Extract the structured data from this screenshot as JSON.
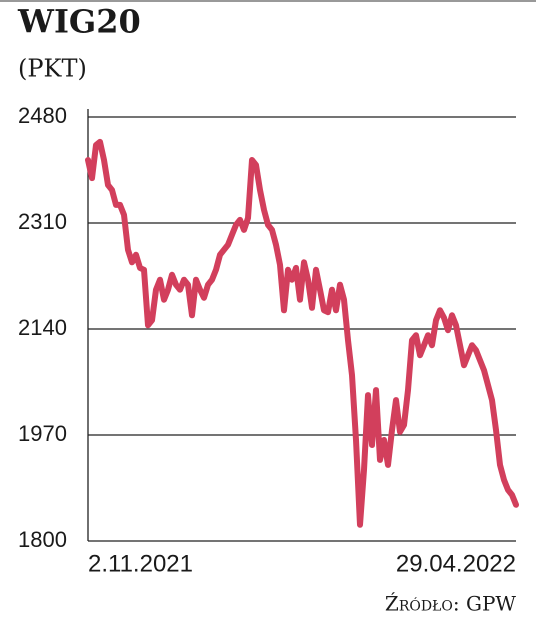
{
  "chart_data": {
    "type": "line",
    "title": "WIG20",
    "subtitle": "(PKT)",
    "source": "Źródło: GPW",
    "categories": [
      "2.11.2021",
      null,
      null,
      null,
      null,
      null,
      null,
      null,
      null,
      null,
      null,
      null,
      null,
      null,
      null,
      null,
      null,
      null,
      null,
      null,
      null,
      null,
      null,
      null,
      null,
      null,
      null,
      null,
      null,
      null,
      null,
      null,
      null,
      null,
      null,
      null,
      null,
      null,
      null,
      null,
      null,
      null,
      null,
      null,
      null,
      null,
      null,
      null,
      null,
      null,
      null,
      null,
      null,
      null,
      null,
      null,
      null,
      null,
      null,
      null,
      null,
      null,
      null,
      null,
      null,
      null,
      null,
      null,
      null,
      null,
      null,
      null,
      null,
      null,
      null,
      null,
      null,
      null,
      null,
      null,
      null,
      null,
      null,
      null,
      null,
      null,
      null,
      null,
      null,
      null,
      null,
      null,
      null,
      null,
      null,
      null,
      null,
      null,
      null,
      null,
      null,
      null,
      null,
      null,
      null,
      null,
      null,
      "29.04.2022"
    ],
    "series": [
      {
        "color": "#d23f5c",
        "values": [
          2411,
          2382,
          2435,
          2440,
          2411,
          2371,
          2363,
          2339,
          2339,
          2323,
          2267,
          2247,
          2259,
          2238,
          2235,
          2146,
          2154,
          2203,
          2219,
          2187,
          2203,
          2227,
          2211,
          2203,
          2219,
          2211,
          2162,
          2219,
          2203,
          2190,
          2211,
          2219,
          2235,
          2259,
          2267,
          2275,
          2291,
          2307,
          2315,
          2299,
          2318,
          2411,
          2403,
          2363,
          2331,
          2307,
          2299,
          2275,
          2243,
          2170,
          2235,
          2219,
          2238,
          2187,
          2247,
          2219,
          2174,
          2235,
          2203,
          2170,
          2167,
          2203,
          2170,
          2211,
          2187,
          2122,
          2066,
          1962,
          1826,
          1914,
          2034,
          1954,
          2042,
          1930,
          1962,
          1922,
          1978,
          2026,
          1975,
          1986,
          2042,
          2122,
          2130,
          2098,
          2114,
          2130,
          2114,
          2154,
          2170,
          2158,
          2138,
          2162,
          2146,
          2114,
          2082,
          2098,
          2114,
          2106,
          2090,
          2074,
          2050,
          2026,
          1978,
          1922,
          1898,
          1882,
          1874,
          1858
        ]
      }
    ],
    "ylim": [
      1800,
      2480
    ],
    "yticks": [
      1800,
      1970,
      2140,
      2310,
      2480
    ],
    "grid": true
  }
}
